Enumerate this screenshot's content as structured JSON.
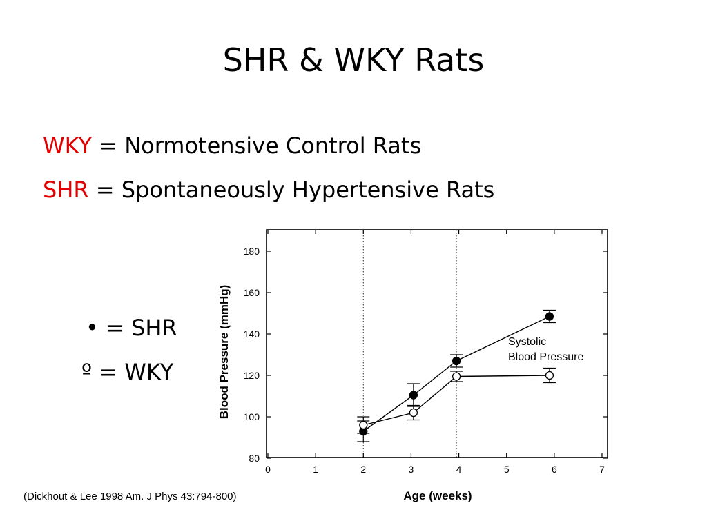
{
  "slide": {
    "title": "SHR & WKY Rats",
    "definitions": [
      {
        "key": "WKY",
        "text": " = Normotensive Control Rats",
        "key_color": "#e00000"
      },
      {
        "key": "SHR",
        "text": " = Spontaneously Hypertensive Rats",
        "key_color": "#e00000"
      }
    ],
    "legend": [
      {
        "symbol": "•",
        "text": " = SHR"
      },
      {
        "symbol": "º",
        "text": " = WKY"
      }
    ],
    "citation": "(Dickhout & Lee 1998 Am. J Phys 43:794-800)"
  },
  "chart_data": {
    "type": "line",
    "xlabel": "Age (weeks)",
    "ylabel": "Blood Pressure (mmHg)",
    "annotation": [
      "Systolic",
      "Blood Pressure"
    ],
    "xlim": [
      0,
      7
    ],
    "ylim": [
      80,
      180
    ],
    "xticks": [
      0,
      1,
      2,
      3,
      4,
      5,
      6,
      7
    ],
    "yticks": [
      80,
      100,
      120,
      140,
      160,
      180
    ],
    "vlines": [
      2,
      3.95
    ],
    "grid": false,
    "series": [
      {
        "marker": "filled-circle",
        "x": [
          2.0,
          3.05,
          3.95,
          5.9
        ],
        "y": [
          93,
          110.5,
          127,
          148.5
        ],
        "err": [
          5,
          5.5,
          3,
          3
        ]
      },
      {
        "marker": "open-circle",
        "x": [
          2.0,
          3.05,
          3.95,
          5.9
        ],
        "y": [
          96,
          102,
          119.5,
          120
        ],
        "err": [
          4,
          3.5,
          2.5,
          3.5
        ]
      }
    ]
  }
}
